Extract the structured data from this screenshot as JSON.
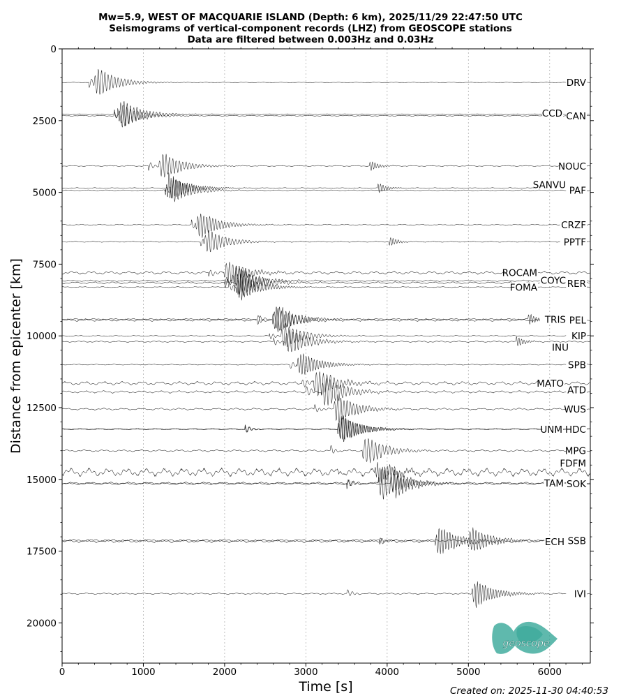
{
  "title_lines": [
    "Mw=5.9, WEST OF MACQUARIE ISLAND (Depth: 6 km), 2025/11/29 22:47:50 UTC",
    "Seismograms of vertical-component records (LHZ) from GEOSCOPE stations",
    "Data are filtered between 0.003Hz and 0.03Hz"
  ],
  "footer": {
    "created": "Created on: 2025-11-30 04:40:53"
  },
  "logo": {
    "text": "geoscope",
    "color": "#2aa192"
  },
  "colors": {
    "trace": "#000000",
    "grid": "#b0b0b0",
    "axis": "#000000"
  },
  "chart_data": {
    "type": "line",
    "subtype": "record-section",
    "xlabel": "Time [s]",
    "ylabel": "Distance from epicenter [km]",
    "xlim": [
      0,
      6500
    ],
    "ylim": [
      21400,
      0
    ],
    "y_inverted": true,
    "xticks": [
      0,
      1000,
      2000,
      3000,
      4000,
      5000,
      6000
    ],
    "yticks": [
      0,
      2500,
      5000,
      7500,
      10000,
      12500,
      15000,
      17500,
      20000
    ],
    "grid": {
      "x": "dotted-vertical",
      "y": false
    },
    "stations": [
      {
        "name": "DRV",
        "distance_km": 1170,
        "p_s": 330,
        "r_s": 450,
        "late_s": null,
        "amp": 0.55,
        "noise": 0.01
      },
      {
        "name": "CCD",
        "distance_km": 2280,
        "p_s": 640,
        "r_s": 740,
        "late_s": null,
        "amp": 0.55,
        "noise": 0.02
      },
      {
        "name": "CAN",
        "distance_km": 2330,
        "p_s": 640,
        "r_s": 760,
        "late_s": null,
        "amp": 0.4,
        "noise": 0.02
      },
      {
        "name": "NOUC",
        "distance_km": 4080,
        "p_s": 1060,
        "r_s": 1250,
        "late_s": 3800,
        "amp": 0.5,
        "noise": 0.02
      },
      {
        "name": "SANVU",
        "distance_km": 4850,
        "p_s": 1270,
        "r_s": 1320,
        "late_s": 3900,
        "amp": 0.5,
        "noise": 0.02
      },
      {
        "name": "PAF",
        "distance_km": 4930,
        "p_s": 1270,
        "r_s": 1380,
        "late_s": null,
        "amp": 0.45,
        "noise": 0.02
      },
      {
        "name": "CRZF",
        "distance_km": 6130,
        "p_s": 1590,
        "r_s": 1700,
        "late_s": null,
        "amp": 0.5,
        "noise": 0.02
      },
      {
        "name": "PPTF",
        "distance_km": 6720,
        "p_s": 1700,
        "r_s": 1800,
        "late_s": 4040,
        "amp": 0.45,
        "noise": 0.02
      },
      {
        "name": "ROCAM",
        "distance_km": 7800,
        "p_s": 1800,
        "r_s": 2050,
        "late_s": null,
        "amp": 0.45,
        "noise": 0.06
      },
      {
        "name": "COYC",
        "distance_km": 8080,
        "p_s": 2000,
        "r_s": 2150,
        "late_s": null,
        "amp": 0.55,
        "noise": 0.03
      },
      {
        "name": "RER",
        "distance_km": 8150,
        "p_s": 2000,
        "r_s": 2200,
        "late_s": null,
        "amp": 0.55,
        "noise": 0.04
      },
      {
        "name": "FOMA",
        "distance_km": 8300,
        "p_s": 2050,
        "r_s": 2200,
        "late_s": null,
        "amp": 0.5,
        "noise": 0.02
      },
      {
        "name": "TRIS",
        "distance_km": 9420,
        "p_s": 2400,
        "r_s": 2650,
        "late_s": 5750,
        "amp": 0.55,
        "noise": 0.03
      },
      {
        "name": "PEL",
        "distance_km": 9450,
        "p_s": 2400,
        "r_s": 2650,
        "late_s": null,
        "amp": 0.45,
        "noise": 0.05
      },
      {
        "name": "KIP",
        "distance_km": 10000,
        "p_s": 2550,
        "r_s": 2750,
        "late_s": null,
        "amp": 0.45,
        "noise": 0.02
      },
      {
        "name": "INU",
        "distance_km": 10200,
        "p_s": 2600,
        "r_s": 2800,
        "late_s": 5600,
        "amp": 0.5,
        "noise": 0.03
      },
      {
        "name": "SPB",
        "distance_km": 11000,
        "p_s": 2800,
        "r_s": 2950,
        "late_s": null,
        "amp": 0.45,
        "noise": 0.02
      },
      {
        "name": "MATO",
        "distance_km": 11650,
        "p_s": 2950,
        "r_s": 3150,
        "late_s": null,
        "amp": 0.55,
        "noise": 0.07
      },
      {
        "name": "ATD",
        "distance_km": 11950,
        "p_s": 3000,
        "r_s": 3250,
        "late_s": null,
        "amp": 0.6,
        "noise": 0.05
      },
      {
        "name": "WUS",
        "distance_km": 12550,
        "p_s": 3100,
        "r_s": 3400,
        "late_s": null,
        "amp": 0.55,
        "noise": 0.04
      },
      {
        "name": "UNM",
        "distance_km": 13250,
        "p_s": 2250,
        "r_s": 3450,
        "late_s": null,
        "amp": 0.5,
        "noise": 0.02
      },
      {
        "name": "HDC",
        "distance_km": 13250,
        "p_s": 2250,
        "r_s": 3450,
        "late_s": null,
        "amp": 0.5,
        "noise": 0.02
      },
      {
        "name": "MPG",
        "distance_km": 14000,
        "p_s": 3300,
        "r_s": 3750,
        "late_s": null,
        "amp": 0.55,
        "noise": 0.04
      },
      {
        "name": "FDFM",
        "distance_km": 14750,
        "p_s": 3400,
        "r_s": 3900,
        "late_s": null,
        "amp": 0.35,
        "noise": 0.16
      },
      {
        "name": "TAM",
        "distance_km": 15130,
        "p_s": 3500,
        "r_s": 3950,
        "late_s": null,
        "amp": 0.6,
        "noise": 0.04
      },
      {
        "name": "SOK",
        "distance_km": 15150,
        "p_s": 3500,
        "r_s": 4100,
        "late_s": null,
        "amp": 0.55,
        "noise": 0.04
      },
      {
        "name": "ECH",
        "distance_km": 17150,
        "p_s": 3900,
        "r_s": 4650,
        "late_s": null,
        "amp": 0.55,
        "noise": 0.06
      },
      {
        "name": "SSB",
        "distance_km": 17130,
        "p_s": 3900,
        "r_s": 5050,
        "late_s": null,
        "amp": 0.5,
        "noise": 0.05
      },
      {
        "name": "IVI",
        "distance_km": 18980,
        "p_s": 3500,
        "r_s": 5100,
        "late_s": null,
        "amp": 0.5,
        "noise": 0.03
      }
    ]
  }
}
